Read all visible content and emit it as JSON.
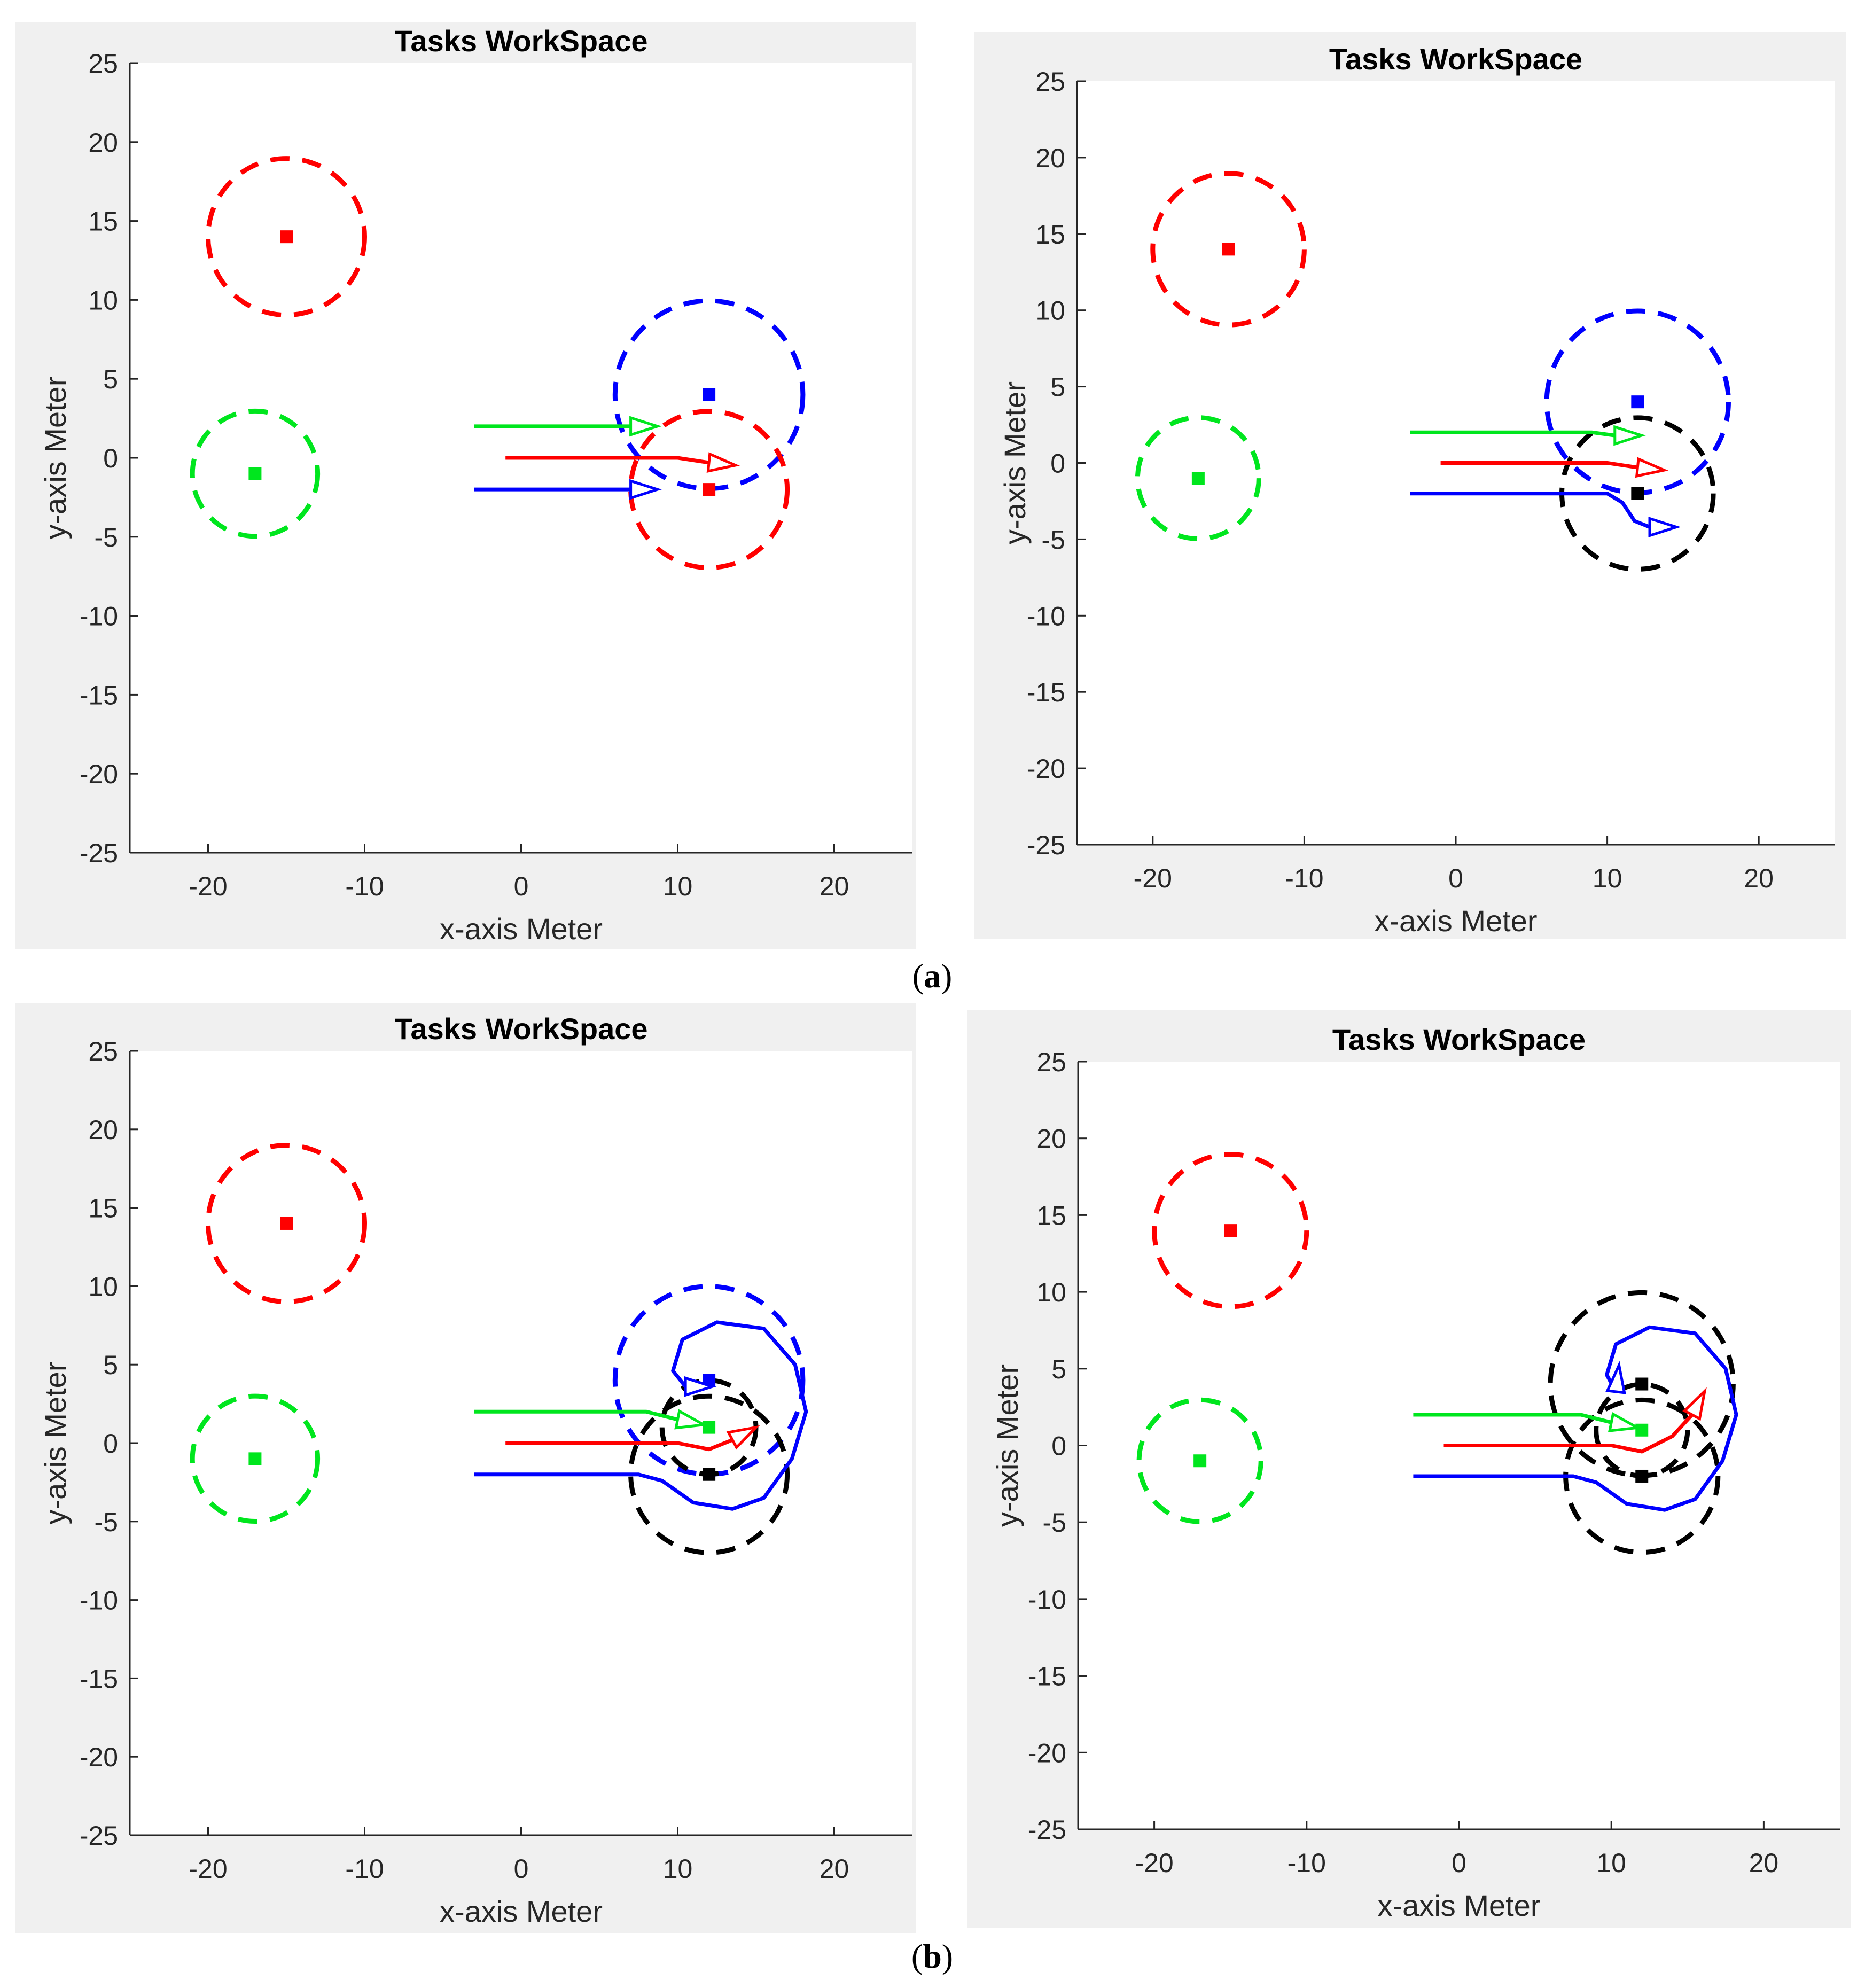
{
  "captions": {
    "a": {
      "open": "(",
      "letter": "a",
      "close": ")"
    },
    "b": {
      "open": "(",
      "letter": "b",
      "close": ")"
    }
  },
  "colors": {
    "red": "#ff0000",
    "green": "#00e61e",
    "blue": "#0000ff",
    "black": "#000000",
    "figure_bg": "#f0f0f0"
  },
  "chart_data": [
    {
      "id": "a-left",
      "type": "scatter",
      "title": "Tasks WorkSpace",
      "xlabel": "x-axis  Meter",
      "ylabel": "y-axis  Meter",
      "xlim": [
        -25,
        25
      ],
      "ylim": [
        -25,
        25
      ],
      "xticks": [
        -20,
        -10,
        0,
        10,
        20
      ],
      "yticks": [
        25,
        20,
        15,
        10,
        5,
        0,
        -5,
        -10,
        -15,
        -20,
        -25
      ],
      "tasks": [
        {
          "name": "task-red-upper",
          "x": -15,
          "y": 14,
          "radius": 5,
          "color": "red",
          "marker_color": "red"
        },
        {
          "name": "task-green",
          "x": -17,
          "y": -1,
          "radius": 4,
          "color": "green",
          "marker_color": "green"
        },
        {
          "name": "task-blue",
          "x": 12,
          "y": 4,
          "radius": 6,
          "color": "blue",
          "marker_color": "blue"
        },
        {
          "name": "task-red-lower",
          "x": 12,
          "y": -2,
          "radius": 5,
          "color": "red",
          "marker_color": "red"
        }
      ],
      "paths": [
        {
          "name": "path-green",
          "color": "green",
          "points": [
            [
              -3,
              2
            ],
            [
              7,
              2
            ]
          ],
          "arrow": [
            [
              7,
              2
            ],
            [
              8,
              2
            ]
          ]
        },
        {
          "name": "path-red",
          "color": "red",
          "points": [
            [
              -1,
              0
            ],
            [
              10,
              0
            ],
            [
              12,
              -0.3
            ]
          ],
          "arrow": [
            [
              12,
              -0.3
            ],
            [
              14,
              -0.5
            ]
          ]
        },
        {
          "name": "path-blue",
          "color": "blue",
          "points": [
            [
              -3,
              -2
            ],
            [
              7,
              -2
            ]
          ],
          "arrow": [
            [
              7,
              -2
            ],
            [
              8,
              -2
            ]
          ]
        }
      ]
    },
    {
      "id": "a-right",
      "type": "scatter",
      "title": "Tasks WorkSpace",
      "xlabel": "x-axis  Meter",
      "ylabel": "y-axis  Meter",
      "xlim": [
        -25,
        25
      ],
      "ylim": [
        -25,
        25
      ],
      "xticks": [
        -20,
        -10,
        0,
        10,
        20
      ],
      "yticks": [
        25,
        20,
        15,
        10,
        5,
        0,
        -5,
        -10,
        -15,
        -20,
        -25
      ],
      "tasks": [
        {
          "name": "task-red-upper",
          "x": -15,
          "y": 14,
          "radius": 5,
          "color": "red",
          "marker_color": "red"
        },
        {
          "name": "task-green",
          "x": -17,
          "y": -1,
          "radius": 4,
          "color": "green",
          "marker_color": "green"
        },
        {
          "name": "task-blue",
          "x": 12,
          "y": 4,
          "radius": 6,
          "color": "blue",
          "marker_color": "blue"
        },
        {
          "name": "task-black-lower",
          "x": 12,
          "y": -2,
          "radius": 5,
          "color": "black",
          "marker_color": "black"
        }
      ],
      "paths": [
        {
          "name": "path-green",
          "color": "green",
          "points": [
            [
              -3,
              2
            ],
            [
              9,
              2
            ],
            [
              10.5,
              1.8
            ]
          ],
          "arrow": [
            [
              10.5,
              1.8
            ],
            [
              12,
              1.8
            ]
          ]
        },
        {
          "name": "path-red",
          "color": "red",
          "points": [
            [
              -1,
              0
            ],
            [
              10,
              0
            ],
            [
              12,
              -0.3
            ]
          ],
          "arrow": [
            [
              12,
              -0.3
            ],
            [
              14,
              -0.5
            ]
          ]
        },
        {
          "name": "path-blue",
          "color": "blue",
          "points": [
            [
              -3,
              -2
            ],
            [
              10,
              -2
            ],
            [
              11,
              -2.6
            ],
            [
              11.8,
              -3.8
            ],
            [
              12.8,
              -4.2
            ]
          ],
          "arrow": [
            [
              12.8,
              -4.2
            ],
            [
              14.5,
              -4.2
            ]
          ]
        }
      ]
    },
    {
      "id": "b-left",
      "type": "scatter",
      "title": "Tasks WorkSpace",
      "xlabel": "x-axis  Meter",
      "ylabel": "y-axis  Meter",
      "xlim": [
        -25,
        25
      ],
      "ylim": [
        -25,
        25
      ],
      "xticks": [
        -20,
        -10,
        0,
        10,
        20
      ],
      "yticks": [
        25,
        20,
        15,
        10,
        5,
        0,
        -5,
        -10,
        -15,
        -20,
        -25
      ],
      "tasks": [
        {
          "name": "task-red-upper",
          "x": -15,
          "y": 14,
          "radius": 5,
          "color": "red",
          "marker_color": "red"
        },
        {
          "name": "task-green",
          "x": -17,
          "y": -1,
          "radius": 4,
          "color": "green",
          "marker_color": "green"
        },
        {
          "name": "task-blue",
          "x": 12,
          "y": 4,
          "radius": 6,
          "color": "blue",
          "marker_color": "blue"
        },
        {
          "name": "task-black-middle",
          "x": 12,
          "y": 1,
          "radius": 3,
          "color": "black",
          "marker_color": "green"
        },
        {
          "name": "task-black-lower",
          "x": 12,
          "y": -2,
          "radius": 5,
          "color": "black",
          "marker_color": "black"
        }
      ],
      "paths": [
        {
          "name": "path-green",
          "color": "green",
          "points": [
            [
              -3,
              2
            ],
            [
              8,
              2
            ],
            [
              10,
              1.5
            ]
          ],
          "arrow": [
            [
              10,
              1.5
            ],
            [
              11.5,
              1.2
            ]
          ]
        },
        {
          "name": "path-red",
          "color": "red",
          "points": [
            [
              -1,
              0
            ],
            [
              10,
              0
            ],
            [
              12,
              -0.4
            ],
            [
              13.5,
              0.2
            ]
          ],
          "arrow": [
            [
              13.5,
              0.2
            ],
            [
              15,
              1
            ]
          ]
        },
        {
          "name": "path-blue",
          "color": "blue",
          "points": [
            [
              -3,
              -2
            ],
            [
              7.5,
              -2
            ],
            [
              9,
              -2.4
            ],
            [
              11,
              -3.8
            ],
            [
              13.5,
              -4.2
            ],
            [
              15.5,
              -3.5
            ],
            [
              17.3,
              -1
            ],
            [
              18.2,
              2
            ],
            [
              17.5,
              5
            ],
            [
              15.5,
              7.3
            ],
            [
              12.5,
              7.7
            ],
            [
              10.3,
              6.6
            ],
            [
              9.7,
              4.6
            ],
            [
              10.5,
              3.6
            ]
          ],
          "arrow": [
            [
              10.5,
              3.6
            ],
            [
              11.8,
              3.6
            ]
          ]
        }
      ]
    },
    {
      "id": "b-right",
      "type": "scatter",
      "title": "Tasks WorkSpace",
      "xlabel": "x-axis  Meter",
      "ylabel": "y-axis  Meter",
      "xlim": [
        -25,
        25
      ],
      "ylim": [
        -25,
        25
      ],
      "xticks": [
        -20,
        -10,
        0,
        10,
        20
      ],
      "yticks": [
        25,
        20,
        15,
        10,
        5,
        0,
        -5,
        -10,
        -15,
        -20,
        -25
      ],
      "tasks": [
        {
          "name": "task-red-upper",
          "x": -15,
          "y": 14,
          "radius": 5,
          "color": "red",
          "marker_color": "red"
        },
        {
          "name": "task-green",
          "x": -17,
          "y": -1,
          "radius": 4,
          "color": "green",
          "marker_color": "green"
        },
        {
          "name": "task-black-upper",
          "x": 12,
          "y": 4,
          "radius": 6,
          "color": "black",
          "marker_color": "black"
        },
        {
          "name": "task-black-middle",
          "x": 12,
          "y": 1,
          "radius": 3,
          "color": "black",
          "marker_color": "green"
        },
        {
          "name": "task-black-lower",
          "x": 12,
          "y": -2,
          "radius": 5,
          "color": "black",
          "marker_color": "black"
        }
      ],
      "paths": [
        {
          "name": "path-green",
          "color": "green",
          "points": [
            [
              -3,
              2
            ],
            [
              8,
              2
            ],
            [
              10,
              1.5
            ]
          ],
          "arrow": [
            [
              10,
              1.5
            ],
            [
              11.5,
              1.2
            ]
          ]
        },
        {
          "name": "path-red",
          "color": "red",
          "points": [
            [
              -1,
              0
            ],
            [
              10,
              0
            ],
            [
              12,
              -0.4
            ],
            [
              14,
              0.6
            ],
            [
              15.3,
              2
            ]
          ],
          "arrow": [
            [
              15.3,
              2
            ],
            [
              16,
              3.3
            ]
          ]
        },
        {
          "name": "path-blue",
          "color": "blue",
          "points": [
            [
              -3,
              -2
            ],
            [
              7.5,
              -2
            ],
            [
              9,
              -2.4
            ],
            [
              11,
              -3.8
            ],
            [
              13.5,
              -4.2
            ],
            [
              15.5,
              -3.5
            ],
            [
              17.3,
              -1
            ],
            [
              18.2,
              2
            ],
            [
              17.5,
              5
            ],
            [
              15.5,
              7.3
            ],
            [
              12.5,
              7.7
            ],
            [
              10.3,
              6.6
            ],
            [
              9.7,
              4.6
            ],
            [
              10.3,
              3.5
            ]
          ],
          "arrow": [
            [
              10.3,
              3.5
            ],
            [
              10.5,
              5.2
            ]
          ]
        }
      ]
    }
  ]
}
